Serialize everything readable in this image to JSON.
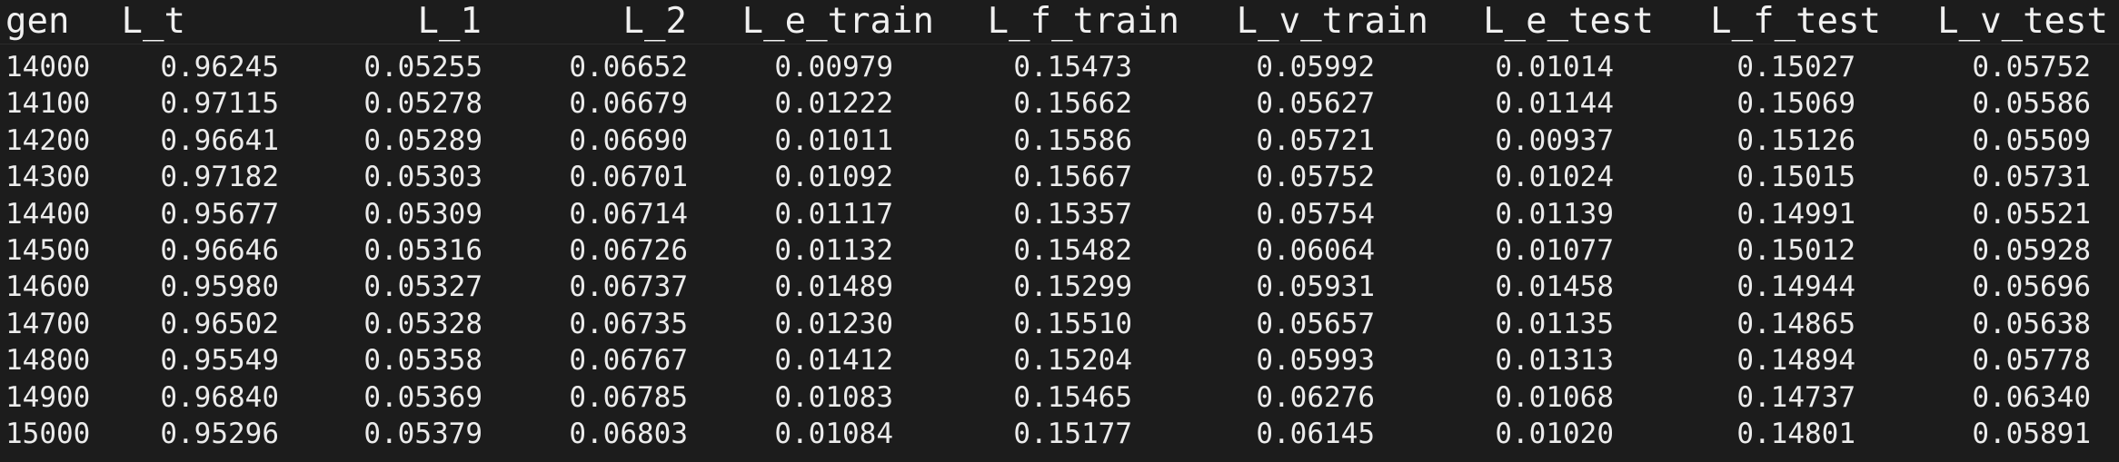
{
  "columns": [
    "gen",
    "L_t",
    "L_1",
    "L_2",
    "L_e_train",
    "L_f_train",
    "L_v_train",
    "L_e_test",
    "L_f_test",
    "L_v_test"
  ],
  "rows": [
    [
      "14000",
      "0.96245",
      "0.05255",
      "0.06652",
      "0.00979",
      "0.15473",
      "0.05992",
      "0.01014",
      "0.15027",
      "0.05752"
    ],
    [
      "14100",
      "0.97115",
      "0.05278",
      "0.06679",
      "0.01222",
      "0.15662",
      "0.05627",
      "0.01144",
      "0.15069",
      "0.05586"
    ],
    [
      "14200",
      "0.96641",
      "0.05289",
      "0.06690",
      "0.01011",
      "0.15586",
      "0.05721",
      "0.00937",
      "0.15126",
      "0.05509"
    ],
    [
      "14300",
      "0.97182",
      "0.05303",
      "0.06701",
      "0.01092",
      "0.15667",
      "0.05752",
      "0.01024",
      "0.15015",
      "0.05731"
    ],
    [
      "14400",
      "0.95677",
      "0.05309",
      "0.06714",
      "0.01117",
      "0.15357",
      "0.05754",
      "0.01139",
      "0.14991",
      "0.05521"
    ],
    [
      "14500",
      "0.96646",
      "0.05316",
      "0.06726",
      "0.01132",
      "0.15482",
      "0.06064",
      "0.01077",
      "0.15012",
      "0.05928"
    ],
    [
      "14600",
      "0.95980",
      "0.05327",
      "0.06737",
      "0.01489",
      "0.15299",
      "0.05931",
      "0.01458",
      "0.14944",
      "0.05696"
    ],
    [
      "14700",
      "0.96502",
      "0.05328",
      "0.06735",
      "0.01230",
      "0.15510",
      "0.05657",
      "0.01135",
      "0.14865",
      "0.05638"
    ],
    [
      "14800",
      "0.95549",
      "0.05358",
      "0.06767",
      "0.01412",
      "0.15204",
      "0.05993",
      "0.01313",
      "0.14894",
      "0.05778"
    ],
    [
      "14900",
      "0.96840",
      "0.05369",
      "0.06785",
      "0.01083",
      "0.15465",
      "0.06276",
      "0.01068",
      "0.14737",
      "0.06340"
    ],
    [
      "15000",
      "0.95296",
      "0.05379",
      "0.06803",
      "0.01084",
      "0.15177",
      "0.06145",
      "0.01020",
      "0.14801",
      "0.05891"
    ]
  ],
  "colors": {
    "background": "#1c1c1c",
    "text": "#ececec"
  }
}
